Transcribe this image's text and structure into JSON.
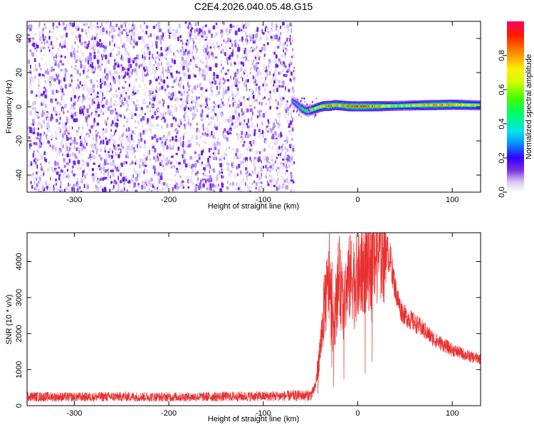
{
  "title": "C2E4.2026.040.05.48.G15",
  "chart_data": [
    {
      "type": "heatmap",
      "xlabel": "Height of straight line (km)",
      "ylabel": "Frequency (Hz)",
      "xlim": [
        -350,
        130
      ],
      "ylim": [
        -50,
        50
      ],
      "x_ticks": [
        -300,
        -200,
        -100,
        0,
        100
      ],
      "y_ticks": [
        -40,
        -20,
        0,
        20,
        40
      ],
      "noise_region_x": [
        -350,
        -68
      ],
      "signal_trace": {
        "x": [
          -70,
          -65,
          -60,
          -55,
          -50,
          -45,
          -40,
          -35,
          -30,
          -25,
          -20,
          -10,
          0,
          20,
          40,
          60,
          80,
          100,
          130
        ],
        "freq_hz": [
          3.5,
          1.5,
          -1.0,
          -2.5,
          -2.0,
          -1.0,
          0.0,
          0.5,
          0.5,
          1.0,
          0.8,
          0.3,
          0.2,
          0.3,
          0.5,
          0.8,
          1.0,
          1.2,
          0.8
        ],
        "amplitude": [
          0.3,
          0.4,
          0.5,
          0.55,
          0.6,
          0.7,
          0.75,
          0.8,
          0.9,
          0.8,
          0.85,
          0.9,
          0.95,
          0.85,
          0.6,
          0.7,
          0.85,
          0.8,
          0.6
        ]
      },
      "colorbar": {
        "label": "Normalized spectral amplitude",
        "range": [
          0,
          1
        ],
        "ticks": [
          0.0,
          0.2,
          0.4,
          0.6,
          0.8
        ],
        "colormap": "rainbow"
      }
    },
    {
      "type": "line",
      "xlabel": "Height of straight line (km)",
      "ylabel": "SNR (10 * v/v)",
      "xlim": [
        -350,
        130
      ],
      "ylim": [
        0,
        4800
      ],
      "x_ticks": [
        -300,
        -200,
        -100,
        0,
        100
      ],
      "y_ticks": [
        0,
        1000,
        2000,
        3000,
        4000
      ],
      "color": "#e83030",
      "series": [
        {
          "x": [
            -350,
            -300,
            -250,
            -200,
            -150,
            -100,
            -75,
            -50,
            -45,
            -40,
            -35,
            -30,
            -25,
            -20,
            -15,
            -10,
            -5,
            0,
            5,
            10,
            15,
            20,
            25,
            30,
            35,
            40,
            45,
            50,
            60,
            70,
            80,
            90,
            100,
            110,
            120,
            130
          ],
          "values": [
            250,
            240,
            250,
            240,
            250,
            260,
            270,
            290,
            500,
            1500,
            2900,
            3400,
            2300,
            3600,
            2700,
            3500,
            3600,
            3500,
            3800,
            3900,
            4100,
            4200,
            4300,
            4350,
            4000,
            3200,
            2700,
            2500,
            2300,
            2100,
            1850,
            1700,
            1550,
            1450,
            1350,
            1300
          ]
        }
      ]
    }
  ]
}
